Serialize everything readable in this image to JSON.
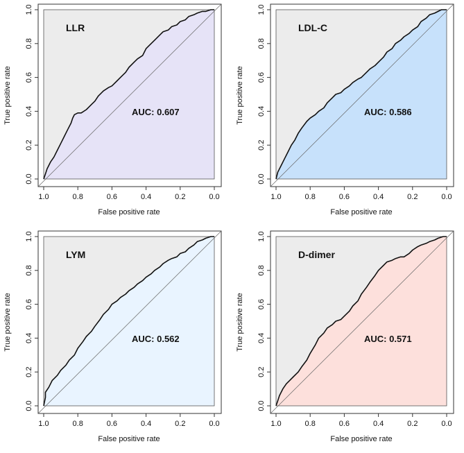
{
  "chart_data": [
    {
      "type": "line",
      "subtype": "roc",
      "title": "LLR",
      "auc_label": "AUC: 0.607",
      "xlabel": "False positive rate",
      "ylabel": "True positive rate",
      "xlim": [
        1.0,
        0.0
      ],
      "ylim": [
        0.0,
        1.0
      ],
      "xticks": [
        "1.0",
        "0.8",
        "0.6",
        "0.4",
        "0.2",
        "0.0"
      ],
      "yticks": [
        "0.0",
        "0.2",
        "0.4",
        "0.6",
        "0.8",
        "1.0"
      ],
      "fill_color": "#e6e3f7",
      "series": [
        {
          "name": "LLR",
          "fpr": [
            1.0,
            0.99,
            0.98,
            0.96,
            0.94,
            0.92,
            0.9,
            0.88,
            0.86,
            0.84,
            0.83,
            0.82,
            0.8,
            0.78,
            0.75,
            0.72,
            0.7,
            0.68,
            0.65,
            0.62,
            0.6,
            0.57,
            0.55,
            0.52,
            0.5,
            0.47,
            0.45,
            0.42,
            0.4,
            0.38,
            0.35,
            0.32,
            0.3,
            0.27,
            0.25,
            0.22,
            0.2,
            0.17,
            0.15,
            0.12,
            0.1,
            0.07,
            0.05,
            0.02,
            0.0
          ],
          "tpr": [
            0.0,
            0.03,
            0.06,
            0.1,
            0.13,
            0.17,
            0.21,
            0.25,
            0.29,
            0.33,
            0.36,
            0.38,
            0.39,
            0.39,
            0.41,
            0.44,
            0.46,
            0.49,
            0.52,
            0.54,
            0.55,
            0.58,
            0.6,
            0.63,
            0.66,
            0.69,
            0.71,
            0.73,
            0.77,
            0.79,
            0.82,
            0.85,
            0.87,
            0.88,
            0.9,
            0.91,
            0.93,
            0.94,
            0.96,
            0.97,
            0.98,
            0.99,
            0.99,
            1.0,
            1.0
          ]
        }
      ]
    },
    {
      "type": "line",
      "subtype": "roc",
      "title": "LDL-C",
      "auc_label": "AUC: 0.586",
      "xlabel": "False positive rate",
      "ylabel": "True positive rate",
      "xlim": [
        1.0,
        0.0
      ],
      "ylim": [
        0.0,
        1.0
      ],
      "xticks": [
        "1.0",
        "0.8",
        "0.6",
        "0.4",
        "0.2",
        "0.0"
      ],
      "yticks": [
        "0.0",
        "0.2",
        "0.4",
        "0.6",
        "0.8",
        "1.0"
      ],
      "fill_color": "#c7e1fb",
      "series": [
        {
          "name": "LDL-C",
          "fpr": [
            1.0,
            0.99,
            0.97,
            0.95,
            0.93,
            0.91,
            0.89,
            0.87,
            0.85,
            0.82,
            0.8,
            0.77,
            0.75,
            0.72,
            0.7,
            0.67,
            0.65,
            0.62,
            0.6,
            0.57,
            0.55,
            0.52,
            0.5,
            0.47,
            0.45,
            0.42,
            0.4,
            0.37,
            0.35,
            0.32,
            0.3,
            0.27,
            0.25,
            0.22,
            0.2,
            0.17,
            0.15,
            0.12,
            0.1,
            0.07,
            0.05,
            0.03,
            0.0
          ],
          "tpr": [
            0.0,
            0.04,
            0.08,
            0.12,
            0.16,
            0.2,
            0.23,
            0.27,
            0.3,
            0.34,
            0.36,
            0.38,
            0.4,
            0.42,
            0.45,
            0.48,
            0.5,
            0.51,
            0.53,
            0.55,
            0.57,
            0.59,
            0.6,
            0.63,
            0.65,
            0.67,
            0.69,
            0.72,
            0.75,
            0.77,
            0.8,
            0.82,
            0.84,
            0.86,
            0.88,
            0.9,
            0.93,
            0.95,
            0.97,
            0.98,
            0.99,
            1.0,
            1.0
          ]
        }
      ]
    },
    {
      "type": "line",
      "subtype": "roc",
      "title": "LYM",
      "auc_label": "AUC: 0.562",
      "xlabel": "False positive rate",
      "ylabel": "True positive rate",
      "xlim": [
        1.0,
        0.0
      ],
      "ylim": [
        0.0,
        1.0
      ],
      "xticks": [
        "1.0",
        "0.8",
        "0.6",
        "0.4",
        "0.2",
        "0.0"
      ],
      "yticks": [
        "0.0",
        "0.2",
        "0.4",
        "0.6",
        "0.8",
        "1.0"
      ],
      "fill_color": "#e9f4ff",
      "series": [
        {
          "name": "LYM",
          "fpr": [
            1.0,
            0.99,
            0.99,
            0.97,
            0.95,
            0.92,
            0.9,
            0.87,
            0.85,
            0.82,
            0.8,
            0.77,
            0.75,
            0.72,
            0.7,
            0.67,
            0.65,
            0.62,
            0.6,
            0.57,
            0.55,
            0.52,
            0.5,
            0.47,
            0.45,
            0.42,
            0.4,
            0.37,
            0.35,
            0.32,
            0.3,
            0.27,
            0.25,
            0.22,
            0.2,
            0.17,
            0.15,
            0.12,
            0.1,
            0.07,
            0.05,
            0.02,
            0.0
          ],
          "tpr": [
            0.0,
            0.05,
            0.08,
            0.11,
            0.15,
            0.18,
            0.21,
            0.24,
            0.27,
            0.3,
            0.34,
            0.38,
            0.41,
            0.44,
            0.47,
            0.51,
            0.54,
            0.57,
            0.6,
            0.62,
            0.64,
            0.66,
            0.68,
            0.7,
            0.72,
            0.74,
            0.76,
            0.78,
            0.8,
            0.82,
            0.84,
            0.86,
            0.87,
            0.88,
            0.9,
            0.91,
            0.93,
            0.95,
            0.97,
            0.98,
            0.99,
            1.0,
            1.0
          ]
        }
      ]
    },
    {
      "type": "line",
      "subtype": "roc",
      "title": "D-dimer",
      "auc_label": "AUC: 0.571",
      "xlabel": "False positive rate",
      "ylabel": "True positive rate",
      "xlim": [
        1.0,
        0.0
      ],
      "ylim": [
        0.0,
        1.0
      ],
      "xticks": [
        "1.0",
        "0.8",
        "0.6",
        "0.4",
        "0.2",
        "0.0"
      ],
      "yticks": [
        "0.0",
        "0.2",
        "0.4",
        "0.6",
        "0.8",
        "1.0"
      ],
      "fill_color": "#fde0dc",
      "series": [
        {
          "name": "D-dimer",
          "fpr": [
            1.0,
            0.99,
            0.98,
            0.96,
            0.94,
            0.92,
            0.9,
            0.87,
            0.85,
            0.82,
            0.8,
            0.77,
            0.75,
            0.72,
            0.7,
            0.67,
            0.65,
            0.62,
            0.6,
            0.57,
            0.55,
            0.52,
            0.5,
            0.47,
            0.45,
            0.42,
            0.4,
            0.37,
            0.35,
            0.32,
            0.3,
            0.27,
            0.25,
            0.22,
            0.2,
            0.17,
            0.15,
            0.12,
            0.1,
            0.07,
            0.05,
            0.02,
            0.0
          ],
          "tpr": [
            0.0,
            0.03,
            0.06,
            0.1,
            0.13,
            0.15,
            0.17,
            0.2,
            0.23,
            0.27,
            0.31,
            0.36,
            0.4,
            0.43,
            0.46,
            0.48,
            0.5,
            0.51,
            0.53,
            0.56,
            0.59,
            0.62,
            0.66,
            0.7,
            0.73,
            0.77,
            0.8,
            0.83,
            0.85,
            0.86,
            0.87,
            0.88,
            0.88,
            0.9,
            0.92,
            0.94,
            0.95,
            0.96,
            0.97,
            0.98,
            0.99,
            1.0,
            1.0
          ]
        }
      ]
    }
  ]
}
